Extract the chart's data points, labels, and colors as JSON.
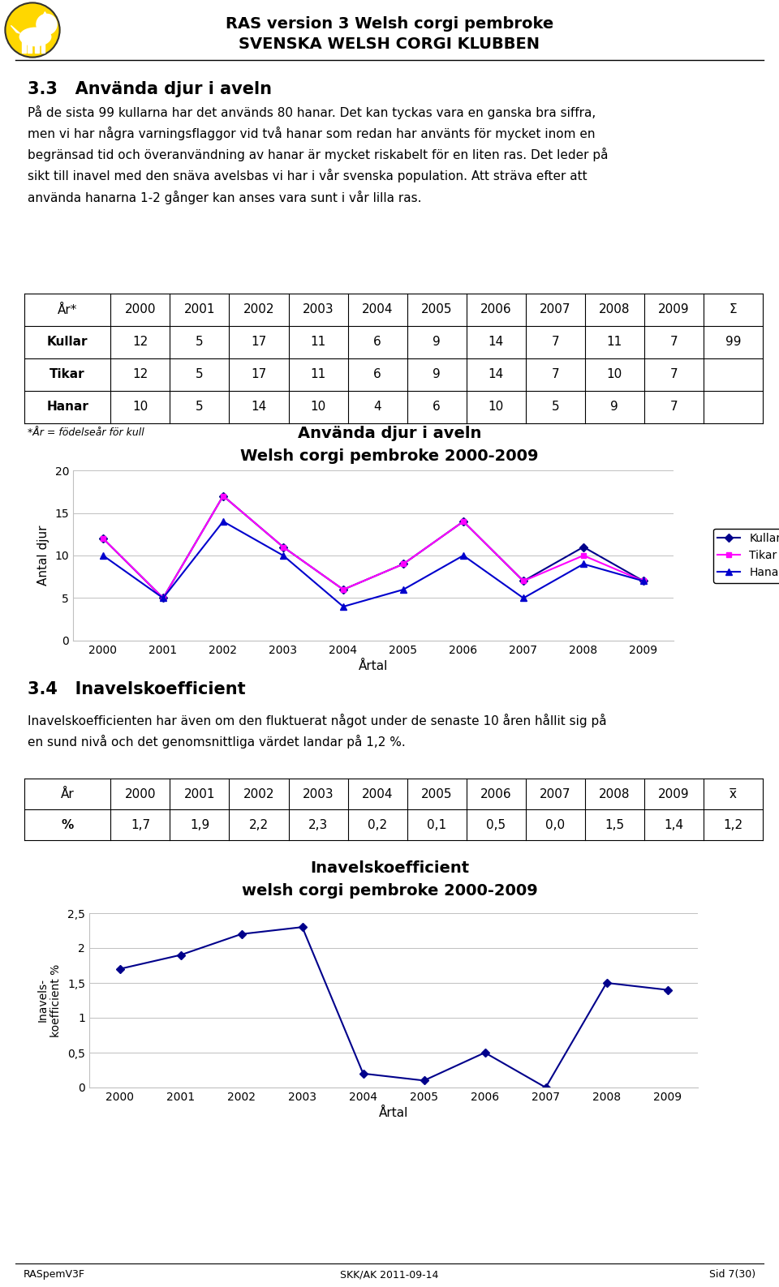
{
  "header_line1": "RAS version 3 Welsh corgi pembroke",
  "header_line2": "SVENSKA WELSH CORGI KLUBBEN",
  "section33_title": "3.3   Använda djur i aveln",
  "section33_body": "På de sista 99 kullarna har det används 80 hanar. Det kan tyckas vara en ganska bra siffra,\nmen vi har några varningsflaggor vid två hanar som redan har använts för mycket inom en\nbegränsad tid och överanvändning av hanar är mycket riskabelt för en liten ras. Det leder på\nsikt till inavel med den snäva avelsbas vi har i vår svenska population. Att sträva efter att\nanvända hanarna 1-2 gånger kan anses vara sunt i vår lilla ras.",
  "table1_headers": [
    "År*",
    "2000",
    "2001",
    "2002",
    "2003",
    "2004",
    "2005",
    "2006",
    "2007",
    "2008",
    "2009",
    "Σ"
  ],
  "table1_rows": [
    [
      "Kullar",
      "12",
      "5",
      "17",
      "11",
      "6",
      "9",
      "14",
      "7",
      "11",
      "7",
      "99"
    ],
    [
      "Tikar",
      "12",
      "5",
      "17",
      "11",
      "6",
      "9",
      "14",
      "7",
      "10",
      "7",
      ""
    ],
    [
      "Hanar",
      "10",
      "5",
      "14",
      "10",
      "4",
      "6",
      "10",
      "5",
      "9",
      "7",
      ""
    ]
  ],
  "table1_footnote": "*År = födelseår för kull",
  "chart1_title1": "Använda djur i aveln",
  "chart1_title2": "Welsh corgi pembroke 2000-2009",
  "chart1_ylabel": "Antal djur",
  "chart1_xlabel": "Årtal",
  "chart1_years": [
    2000,
    2001,
    2002,
    2003,
    2004,
    2005,
    2006,
    2007,
    2008,
    2009
  ],
  "chart1_kullar": [
    12,
    5,
    17,
    11,
    6,
    9,
    14,
    7,
    11,
    7
  ],
  "chart1_tikar": [
    12,
    5,
    17,
    11,
    6,
    9,
    14,
    7,
    10,
    7
  ],
  "chart1_hanar": [
    10,
    5,
    14,
    10,
    4,
    6,
    10,
    5,
    9,
    7
  ],
  "chart1_ylim": [
    0,
    20
  ],
  "chart1_yticks": [
    0,
    5,
    10,
    15,
    20
  ],
  "color_kullar": "#00008B",
  "color_tikar": "#FF00FF",
  "color_hanar": "#0000CD",
  "section34_title": "3.4   Inavelskoefficient",
  "section34_body": "Inavelskoefficienten har även om den fluktuerat något under de senaste 10 åren hållit sig på\nen sund nivå och det genomsnittliga värdet landar på 1,2 %.",
  "table2_headers": [
    "År",
    "2000",
    "2001",
    "2002",
    "2003",
    "2004",
    "2005",
    "2006",
    "2007",
    "2008",
    "2009",
    "x̅"
  ],
  "table2_rows": [
    [
      "%",
      "1,7",
      "1,9",
      "2,2",
      "2,3",
      "0,2",
      "0,1",
      "0,5",
      "0,0",
      "1,5",
      "1,4",
      "1,2"
    ]
  ],
  "chart2_title1": "Inavelskoefficient",
  "chart2_title2": "welsh corgi pembroke 2000-2009",
  "chart2_ylabel1": "Inavels-",
  "chart2_ylabel2": "koefficient %",
  "chart2_xlabel": "Årtal",
  "chart2_years": [
    2000,
    2001,
    2002,
    2003,
    2004,
    2005,
    2006,
    2007,
    2008,
    2009
  ],
  "chart2_values": [
    1.7,
    1.9,
    2.2,
    2.3,
    0.2,
    0.1,
    0.5,
    0.0,
    1.5,
    1.4
  ],
  "chart2_ylim": [
    0,
    2.5
  ],
  "chart2_yticks": [
    0,
    0.5,
    1.0,
    1.5,
    2.0,
    2.5
  ],
  "chart2_yticklabels": [
    "0",
    "0,5",
    "1",
    "1,5",
    "2",
    "2,5"
  ],
  "color_chart2": "#00008B",
  "footer_left": "RASpemV3F",
  "footer_center": "SKK/AK 2011-09-14",
  "footer_right": "Sid 7(30)"
}
